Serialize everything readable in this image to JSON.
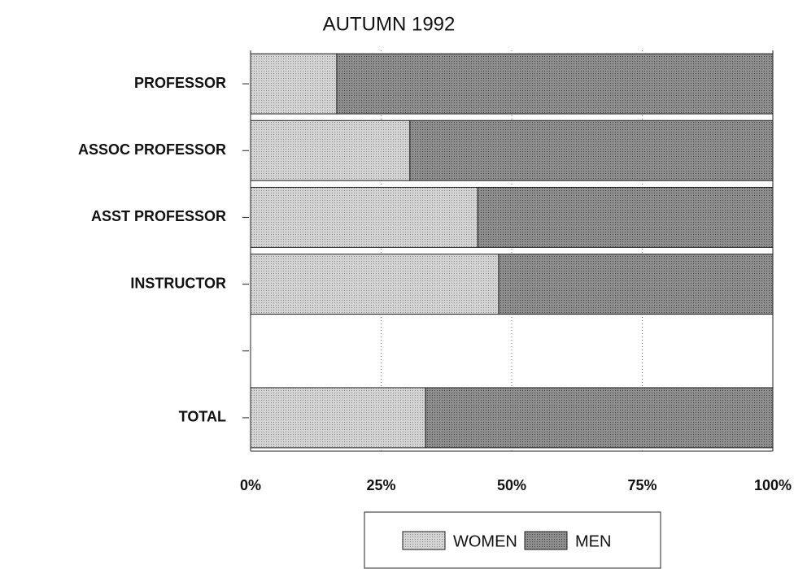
{
  "chart_data": {
    "type": "stacked_barh",
    "title": "AUTUMN 1992",
    "categories": [
      "PROFESSOR",
      "ASSOC PROFESSOR",
      "ASST PROFESSOR",
      "INSTRUCTOR",
      null,
      "TOTAL"
    ],
    "series": [
      {
        "name": "WOMEN",
        "color": "#d4d4d4",
        "values": [
          16.5,
          30.5,
          43.5,
          47.5,
          null,
          33.5
        ]
      },
      {
        "name": "MEN",
        "color": "#8e8e8e",
        "values": [
          83.5,
          69.5,
          56.5,
          52.5,
          null,
          66.5
        ]
      }
    ],
    "xlim": [
      0,
      100
    ],
    "xticks": [
      {
        "value": 0,
        "label": "0%"
      },
      {
        "value": 25,
        "label": "25%"
      },
      {
        "value": 50,
        "label": "50%"
      },
      {
        "value": 75,
        "label": "75%"
      },
      {
        "value": 100,
        "label": "100%"
      }
    ],
    "grid": true,
    "legend": "bottom"
  }
}
